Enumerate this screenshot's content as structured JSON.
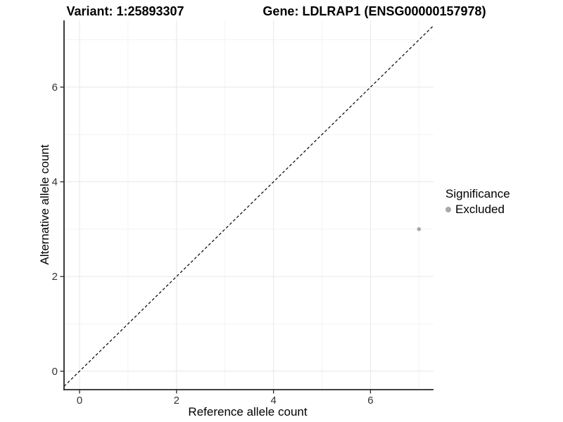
{
  "title": {
    "variant": "Variant: 1:25893307",
    "gene": "Gene: LDLRAP1 (ENSG00000157978)"
  },
  "chart_data": {
    "type": "scatter",
    "title": "Variant: 1:25893307   Gene: LDLRAP1 (ENSG00000157978)",
    "xlabel": "Reference allele count",
    "ylabel": "Alternative allele count",
    "xlim": [
      -0.32,
      7.3
    ],
    "ylim": [
      -0.39,
      7.41
    ],
    "x_major_ticks": [
      0,
      2,
      4,
      6
    ],
    "x_minor_ticks": [
      1,
      3,
      5,
      7
    ],
    "y_major_ticks": [
      0,
      2,
      4,
      6
    ],
    "y_minor_ticks": [
      1,
      3,
      5,
      7
    ],
    "grid": true,
    "series": [
      {
        "name": "Excluded",
        "color": "#a8a8a8",
        "marker": "circle",
        "points": [
          {
            "x": 7,
            "y": 3
          }
        ]
      }
    ],
    "reference_line": {
      "type": "identity",
      "slope": 1,
      "intercept": 0,
      "style": "dashed",
      "color": "#000000"
    },
    "legend": {
      "title": "Significance",
      "position": "right",
      "entries": [
        {
          "label": "Excluded",
          "color": "#a8a8a8",
          "marker": "circle"
        }
      ]
    },
    "style": {
      "major_grid": "#e7e7e7",
      "minor_grid": "#f3f3f3",
      "axis_line": "#262626",
      "tick_label": "#333333",
      "background": "#ffffff"
    }
  }
}
